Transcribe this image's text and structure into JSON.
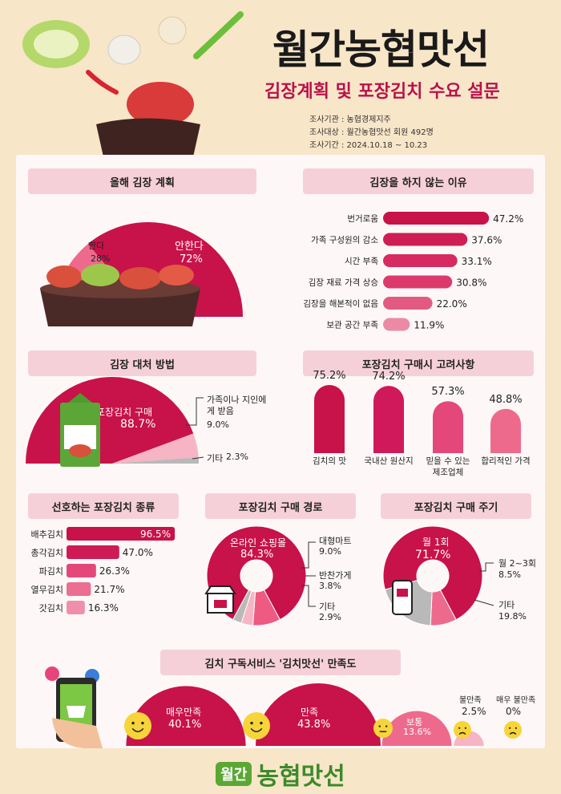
{
  "header": {
    "title": "월간농협맛선",
    "subtitle": "김장계획 및 포장김치 수요 설문",
    "meta": [
      "조사기관 : 농협경제지주",
      "조사대상 : 월간농협맛선 회원 492명",
      "조사기간 : 2024.10.18 ~ 10.23"
    ]
  },
  "footer": {
    "badge": "월간",
    "brand": "농협맛선"
  },
  "colors": {
    "crimson": "#c8124a",
    "pink": "#ee6a8c",
    "lightpink": "#f6b4c4",
    "gray": "#b9b9b9",
    "panel_header": "#f6d0d9"
  },
  "chart_data": [
    {
      "id": "plan",
      "type": "pie",
      "title": "올해 김장 계획",
      "slices": [
        {
          "label": "안한다",
          "value": 72,
          "display": "72%"
        },
        {
          "label": "한다",
          "value": 28,
          "display": "28%"
        }
      ]
    },
    {
      "id": "reasons",
      "type": "bar",
      "orientation": "horizontal",
      "title": "김장을 하지 않는 이유",
      "categories": [
        "번거로움",
        "가족 구성원의 감소",
        "시간 부족",
        "김장 재료 가격 상승",
        "김장을 해본적이 없음",
        "보관 공간 부족"
      ],
      "values": [
        47.2,
        37.6,
        33.1,
        30.8,
        22.0,
        11.9
      ],
      "labels": [
        "47.2%",
        "37.6%",
        "33.1%",
        "30.8%",
        "22.0%",
        "11.9%"
      ],
      "xlim": [
        0,
        50
      ]
    },
    {
      "id": "alternative",
      "type": "pie",
      "title": "김장 대처 방법",
      "slices": [
        {
          "label": "포장김치 구매",
          "value": 88.7,
          "display": "88.7%"
        },
        {
          "label": "가족이나 지인에게 받음",
          "value": 9.0,
          "display": "9.0%"
        },
        {
          "label": "기타",
          "value": 2.3,
          "display": "2.3%"
        }
      ]
    },
    {
      "id": "factors",
      "type": "bar",
      "title": "포장김치 구매시 고려사항",
      "categories": [
        "김치의 맛",
        "국내산 원산지",
        "믿을 수 있는 제조업체",
        "합리적인 가격"
      ],
      "values": [
        75.2,
        74.2,
        57.3,
        48.8
      ],
      "labels": [
        "75.2%",
        "74.2%",
        "57.3%",
        "48.8%"
      ],
      "ylim": [
        0,
        100
      ]
    },
    {
      "id": "types",
      "type": "bar",
      "orientation": "horizontal",
      "title": "선호하는 포장김치 종류",
      "categories": [
        "배추김치",
        "총각김치",
        "파김치",
        "열무김치",
        "갓김치"
      ],
      "values": [
        96.5,
        47.0,
        26.3,
        21.7,
        16.3
      ],
      "labels": [
        "96.5%",
        "47.0%",
        "26.3%",
        "21.7%",
        "16.3%"
      ],
      "xlim": [
        0,
        100
      ]
    },
    {
      "id": "channel",
      "type": "pie",
      "title": "포장김치 구매 경로",
      "slices": [
        {
          "label": "온라인 쇼핑몰",
          "value": 84.3,
          "display": "84.3%"
        },
        {
          "label": "대형마트",
          "value": 9.0,
          "display": "9.0%"
        },
        {
          "label": "반찬가게",
          "value": 3.8,
          "display": "3.8%"
        },
        {
          "label": "기타",
          "value": 2.9,
          "display": "2.9%"
        }
      ]
    },
    {
      "id": "cycle",
      "type": "pie",
      "title": "포장김치 구매 주기",
      "slices": [
        {
          "label": "월 1회",
          "value": 71.7,
          "display": "71.7%"
        },
        {
          "label": "월 2~3회",
          "value": 8.5,
          "display": "8.5%"
        },
        {
          "label": "기타",
          "value": 19.8,
          "display": "19.8%"
        }
      ]
    },
    {
      "id": "satisfaction",
      "type": "bar",
      "title": "김치 구독서비스 '김치맛선' 만족도",
      "categories": [
        "매우만족",
        "만족",
        "보통",
        "불만족",
        "매우 불만족"
      ],
      "values": [
        40.1,
        43.8,
        13.6,
        2.5,
        0
      ],
      "labels": [
        "40.1%",
        "43.8%",
        "13.6%",
        "2.5%",
        "0%"
      ]
    }
  ]
}
